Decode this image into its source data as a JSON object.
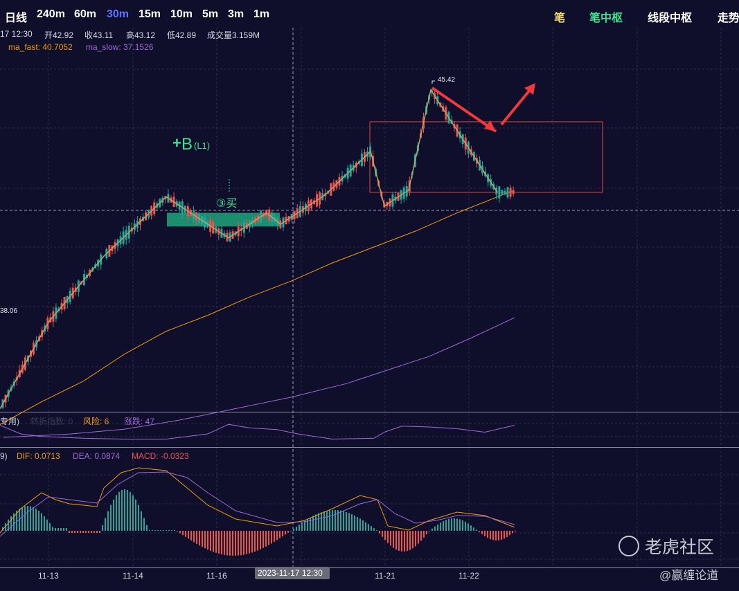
{
  "toolbar": {
    "timeframes": [
      "日线",
      "240m",
      "60m",
      "30m",
      "15m",
      "10m",
      "5m",
      "3m",
      "1m"
    ],
    "active_timeframe": "30m",
    "modes": [
      {
        "label": "笔",
        "color": "#f5d76e"
      },
      {
        "label": "笔中枢",
        "color": "#3fe08f"
      },
      {
        "label": "线段中枢",
        "color": "#ffffff"
      },
      {
        "label": "走势",
        "color": "#ffffff"
      }
    ]
  },
  "ohlc": {
    "datetime": "17 12:30",
    "open": "开42.92",
    "close": "收43.11",
    "high": "高43.12",
    "low": "低42.89",
    "volume": "成交量3.159M"
  },
  "ma": {
    "fast": "ma_fast: 40.7052",
    "slow": "ma_slow: 37.1526",
    "fast_color": "#f39c12",
    "slow_color": "#a06ad8"
  },
  "indicator1": {
    "prefix": "专用)",
    "faded": "转折指数: 0",
    "risk": "风险: 6",
    "change": "涨跌: 47"
  },
  "macd": {
    "prefix": "9)",
    "dif": "DIF: 0.0713",
    "dea": "DEA: 0.0874",
    "macd": "MACD: -0.0323"
  },
  "chart_data": {
    "type": "candlestick",
    "price_axis": {
      "ylim": [
        37.2,
        46.35
      ],
      "labels": [
        {
          "text": "45.42",
          "value": 45.42
        },
        {
          "text": "38.06",
          "value": 38.06
        }
      ]
    },
    "x_ticks": [
      "11-13",
      "11-14",
      "11-16",
      "11-21",
      "11-22"
    ],
    "crosshair_label": "2023-11-17 12:30",
    "annotations": {
      "buy_main": "B",
      "buy_sub": "(L1)",
      "buy3": "③买"
    },
    "colors": {
      "up": "#26a69a",
      "down": "#ef5350",
      "bi": "#b7a46a",
      "zhongshu": "#1fa37a",
      "box": "#e04848",
      "arrow": "#ee3a3a"
    },
    "ma_fast_points": [
      [
        0,
        37.95
      ],
      [
        60,
        38.45
      ],
      [
        120,
        38.9
      ],
      [
        180,
        39.5
      ],
      [
        240,
        40.0
      ],
      [
        300,
        40.35
      ],
      [
        360,
        40.75
      ],
      [
        420,
        41.1
      ],
      [
        480,
        41.5
      ],
      [
        540,
        41.85
      ],
      [
        600,
        42.2
      ],
      [
        660,
        42.6
      ],
      [
        743,
        43.1
      ]
    ],
    "ma_slow_points": [
      [
        5,
        37.67
      ],
      [
        100,
        37.74
      ],
      [
        180,
        37.85
      ],
      [
        260,
        38.05
      ],
      [
        340,
        38.3
      ],
      [
        420,
        38.55
      ],
      [
        500,
        38.85
      ],
      [
        560,
        39.15
      ],
      [
        620,
        39.45
      ],
      [
        680,
        39.85
      ],
      [
        743,
        40.3
      ]
    ],
    "bi_points": [
      [
        0,
        38.3
      ],
      [
        70,
        40.2
      ],
      [
        150,
        41.65
      ],
      [
        240,
        42.95
      ],
      [
        330,
        42.05
      ],
      [
        385,
        42.6
      ],
      [
        405,
        42.35
      ],
      [
        470,
        43.0
      ],
      [
        535,
        43.95
      ],
      [
        555,
        42.75
      ],
      [
        590,
        43.1
      ],
      [
        622,
        45.3
      ],
      [
        718,
        43.05
      ]
    ],
    "zhongshu": [
      {
        "x1": 241,
        "x2": 404,
        "top": 42.6,
        "bottom": 42.3
      },
      {
        "x1": 534,
        "x2": 870,
        "top": 44.6,
        "bottom": 43.05
      }
    ],
    "indicator1_points": [
      [
        0,
        37.3
      ],
      [
        30,
        37.2
      ],
      [
        60,
        37.17
      ],
      [
        120,
        37.15
      ],
      [
        180,
        37.14
      ],
      [
        240,
        37.14
      ],
      [
        300,
        37.2
      ],
      [
        330,
        37.31
      ],
      [
        360,
        37.27
      ],
      [
        400,
        37.25
      ],
      [
        430,
        37.2
      ],
      [
        480,
        37.14
      ],
      [
        540,
        37.15
      ],
      [
        555,
        37.22
      ],
      [
        580,
        37.29
      ],
      [
        620,
        37.28
      ],
      [
        660,
        37.26
      ],
      [
        700,
        37.22
      ],
      [
        743,
        37.3
      ]
    ]
  },
  "watermark": {
    "brand": "老虎社区",
    "author": "@赢缠论道"
  }
}
